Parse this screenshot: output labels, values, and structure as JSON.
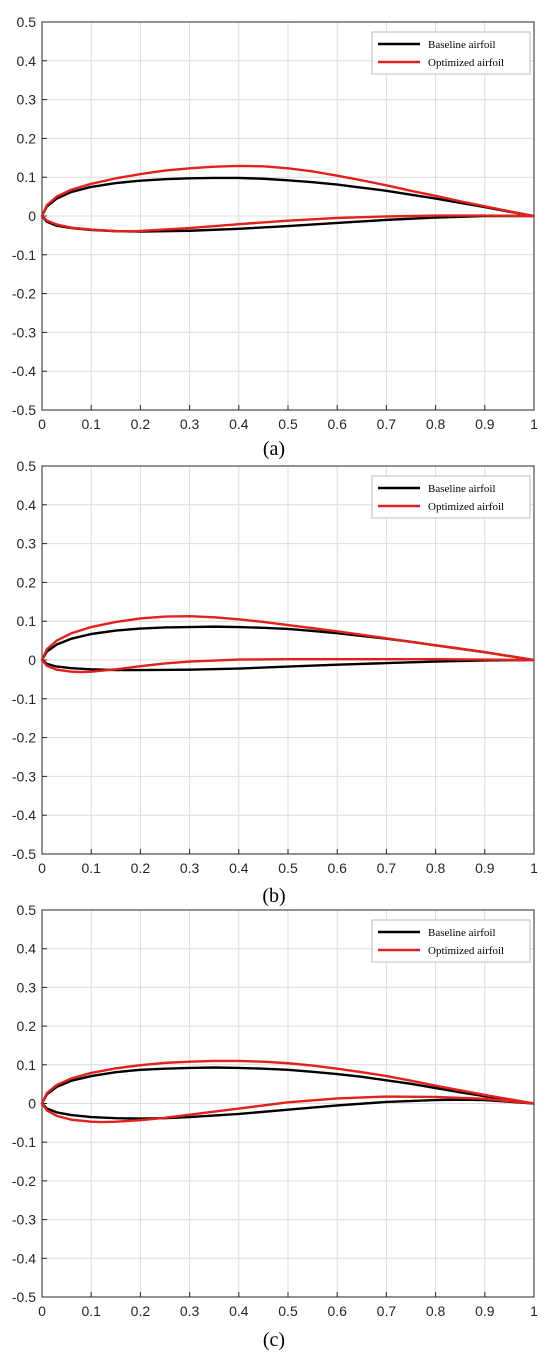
{
  "colors": {
    "baseline": "#000000",
    "optimized": "#e3201b",
    "grid": "#dcdcdc",
    "axis": "#262626"
  },
  "chart_data": [
    {
      "type": "line",
      "caption": "(a)",
      "xlim": [
        0,
        1
      ],
      "ylim": [
        -0.5,
        0.5
      ],
      "xticks": [
        "0",
        "0.1",
        "0.2",
        "0.3",
        "0.4",
        "0.5",
        "0.6",
        "0.7",
        "0.8",
        "0.9",
        "1"
      ],
      "yticks": [
        "0.5",
        "0.4",
        "0.3",
        "0.2",
        "0.1",
        "0",
        "-0.1",
        "-0.2",
        "-0.3",
        "-0.4",
        "-0.5"
      ],
      "grid": true,
      "legend_position": "top-right",
      "series": [
        {
          "name": "Baseline airfoil",
          "color": "#000000",
          "upper": [
            [
              0,
              0
            ],
            [
              0.01,
              0.025
            ],
            [
              0.03,
              0.045
            ],
            [
              0.06,
              0.062
            ],
            [
              0.1,
              0.075
            ],
            [
              0.15,
              0.085
            ],
            [
              0.2,
              0.091
            ],
            [
              0.25,
              0.095
            ],
            [
              0.3,
              0.097
            ],
            [
              0.35,
              0.098
            ],
            [
              0.4,
              0.098
            ],
            [
              0.45,
              0.096
            ],
            [
              0.5,
              0.092
            ],
            [
              0.55,
              0.087
            ],
            [
              0.6,
              0.081
            ],
            [
              0.65,
              0.073
            ],
            [
              0.7,
              0.065
            ],
            [
              0.75,
              0.055
            ],
            [
              0.8,
              0.045
            ],
            [
              0.85,
              0.034
            ],
            [
              0.9,
              0.023
            ],
            [
              0.95,
              0.011
            ],
            [
              1,
              0
            ]
          ],
          "lower": [
            [
              0,
              0
            ],
            [
              0.01,
              -0.015
            ],
            [
              0.03,
              -0.025
            ],
            [
              0.06,
              -0.031
            ],
            [
              0.1,
              -0.036
            ],
            [
              0.15,
              -0.039
            ],
            [
              0.2,
              -0.04
            ],
            [
              0.25,
              -0.039
            ],
            [
              0.3,
              -0.038
            ],
            [
              0.4,
              -0.033
            ],
            [
              0.5,
              -0.026
            ],
            [
              0.6,
              -0.018
            ],
            [
              0.7,
              -0.01
            ],
            [
              0.8,
              -0.004
            ],
            [
              0.9,
              0
            ],
            [
              1,
              0
            ]
          ]
        },
        {
          "name": "Optimized airfoil",
          "color": "#e3201b",
          "upper": [
            [
              0,
              0
            ],
            [
              0.01,
              0.028
            ],
            [
              0.03,
              0.05
            ],
            [
              0.06,
              0.068
            ],
            [
              0.1,
              0.083
            ],
            [
              0.15,
              0.097
            ],
            [
              0.2,
              0.108
            ],
            [
              0.25,
              0.117
            ],
            [
              0.3,
              0.123
            ],
            [
              0.35,
              0.127
            ],
            [
              0.4,
              0.129
            ],
            [
              0.45,
              0.128
            ],
            [
              0.5,
              0.123
            ],
            [
              0.55,
              0.115
            ],
            [
              0.6,
              0.104
            ],
            [
              0.65,
              0.092
            ],
            [
              0.7,
              0.079
            ],
            [
              0.75,
              0.065
            ],
            [
              0.8,
              0.052
            ],
            [
              0.85,
              0.038
            ],
            [
              0.9,
              0.025
            ],
            [
              0.95,
              0.012
            ],
            [
              1,
              0
            ]
          ],
          "lower": [
            [
              0,
              0
            ],
            [
              0.01,
              -0.012
            ],
            [
              0.03,
              -0.022
            ],
            [
              0.06,
              -0.03
            ],
            [
              0.1,
              -0.035
            ],
            [
              0.15,
              -0.039
            ],
            [
              0.18,
              -0.04
            ],
            [
              0.22,
              -0.037
            ],
            [
              0.3,
              -0.031
            ],
            [
              0.4,
              -0.021
            ],
            [
              0.5,
              -0.012
            ],
            [
              0.6,
              -0.005
            ],
            [
              0.7,
              -0.001
            ],
            [
              0.8,
              0.001
            ],
            [
              0.9,
              0.001
            ],
            [
              1,
              0
            ]
          ]
        }
      ]
    },
    {
      "type": "line",
      "caption": "(b)",
      "xlim": [
        0,
        1
      ],
      "ylim": [
        -0.5,
        0.5
      ],
      "xticks": [
        "0",
        "0.1",
        "0.2",
        "0.3",
        "0.4",
        "0.5",
        "0.6",
        "0.7",
        "0.8",
        "0.9",
        "1"
      ],
      "yticks": [
        "0.5",
        "0.4",
        "0.3",
        "0.2",
        "0.1",
        "0",
        "-0.1",
        "-0.2",
        "-0.3",
        "-0.4",
        "-0.5"
      ],
      "grid": true,
      "legend_position": "top-right",
      "series": [
        {
          "name": "Baseline airfoil",
          "color": "#000000",
          "upper": [
            [
              0,
              0
            ],
            [
              0.01,
              0.022
            ],
            [
              0.03,
              0.04
            ],
            [
              0.06,
              0.055
            ],
            [
              0.1,
              0.067
            ],
            [
              0.15,
              0.076
            ],
            [
              0.2,
              0.081
            ],
            [
              0.25,
              0.084
            ],
            [
              0.3,
              0.085
            ],
            [
              0.35,
              0.086
            ],
            [
              0.4,
              0.085
            ],
            [
              0.45,
              0.083
            ],
            [
              0.5,
              0.08
            ],
            [
              0.55,
              0.075
            ],
            [
              0.6,
              0.069
            ],
            [
              0.65,
              0.062
            ],
            [
              0.7,
              0.055
            ],
            [
              0.75,
              0.047
            ],
            [
              0.8,
              0.038
            ],
            [
              0.85,
              0.029
            ],
            [
              0.9,
              0.02
            ],
            [
              0.95,
              0.01
            ],
            [
              1,
              0
            ]
          ],
          "lower": [
            [
              0,
              0
            ],
            [
              0.01,
              -0.01
            ],
            [
              0.03,
              -0.017
            ],
            [
              0.06,
              -0.021
            ],
            [
              0.1,
              -0.024
            ],
            [
              0.15,
              -0.026
            ],
            [
              0.2,
              -0.026
            ],
            [
              0.3,
              -0.025
            ],
            [
              0.4,
              -0.022
            ],
            [
              0.5,
              -0.017
            ],
            [
              0.6,
              -0.012
            ],
            [
              0.7,
              -0.008
            ],
            [
              0.8,
              -0.004
            ],
            [
              0.9,
              -0.001
            ],
            [
              1,
              0
            ]
          ]
        },
        {
          "name": "Optimized airfoil",
          "color": "#e3201b",
          "upper": [
            [
              0,
              0
            ],
            [
              0.01,
              0.028
            ],
            [
              0.03,
              0.05
            ],
            [
              0.06,
              0.069
            ],
            [
              0.1,
              0.085
            ],
            [
              0.15,
              0.098
            ],
            [
              0.2,
              0.107
            ],
            [
              0.25,
              0.112
            ],
            [
              0.3,
              0.113
            ],
            [
              0.35,
              0.11
            ],
            [
              0.4,
              0.105
            ],
            [
              0.45,
              0.098
            ],
            [
              0.5,
              0.09
            ],
            [
              0.55,
              0.082
            ],
            [
              0.6,
              0.074
            ],
            [
              0.65,
              0.065
            ],
            [
              0.7,
              0.056
            ],
            [
              0.75,
              0.047
            ],
            [
              0.8,
              0.038
            ],
            [
              0.85,
              0.029
            ],
            [
              0.9,
              0.02
            ],
            [
              0.95,
              0.01
            ],
            [
              1,
              0
            ]
          ],
          "lower": [
            [
              0,
              0
            ],
            [
              0.01,
              -0.015
            ],
            [
              0.03,
              -0.025
            ],
            [
              0.06,
              -0.03
            ],
            [
              0.08,
              -0.031
            ],
            [
              0.1,
              -0.03
            ],
            [
              0.15,
              -0.024
            ],
            [
              0.2,
              -0.016
            ],
            [
              0.25,
              -0.009
            ],
            [
              0.3,
              -0.004
            ],
            [
              0.4,
              0.001
            ],
            [
              0.5,
              0.002
            ],
            [
              0.6,
              0.002
            ],
            [
              0.7,
              0.002
            ],
            [
              0.8,
              0.002
            ],
            [
              0.9,
              0.001
            ],
            [
              1,
              0
            ]
          ]
        }
      ]
    },
    {
      "type": "line",
      "caption": "(c)",
      "xlim": [
        0,
        1
      ],
      "ylim": [
        -0.5,
        0.5
      ],
      "xticks": [
        "0",
        "0.1",
        "0.2",
        "0.3",
        "0.4",
        "0.5",
        "0.6",
        "0.7",
        "0.8",
        "0.9",
        "1"
      ],
      "yticks": [
        "0.5",
        "0.4",
        "0.3",
        "0.2",
        "0.1",
        "0",
        "-0.1",
        "-0.2",
        "-0.3",
        "-0.4",
        "-0.5"
      ],
      "grid": true,
      "legend_position": "top-right",
      "series": [
        {
          "name": "Baseline airfoil",
          "color": "#000000",
          "upper": [
            [
              0,
              0
            ],
            [
              0.01,
              0.024
            ],
            [
              0.03,
              0.043
            ],
            [
              0.06,
              0.059
            ],
            [
              0.1,
              0.071
            ],
            [
              0.15,
              0.081
            ],
            [
              0.2,
              0.087
            ],
            [
              0.25,
              0.09
            ],
            [
              0.3,
              0.092
            ],
            [
              0.35,
              0.093
            ],
            [
              0.4,
              0.092
            ],
            [
              0.45,
              0.09
            ],
            [
              0.5,
              0.087
            ],
            [
              0.55,
              0.082
            ],
            [
              0.6,
              0.076
            ],
            [
              0.65,
              0.069
            ],
            [
              0.7,
              0.06
            ],
            [
              0.75,
              0.051
            ],
            [
              0.8,
              0.04
            ],
            [
              0.85,
              0.029
            ],
            [
              0.9,
              0.019
            ],
            [
              0.95,
              0.009
            ],
            [
              1,
              0
            ]
          ],
          "lower": [
            [
              0,
              0
            ],
            [
              0.01,
              -0.013
            ],
            [
              0.03,
              -0.023
            ],
            [
              0.06,
              -0.03
            ],
            [
              0.1,
              -0.035
            ],
            [
              0.15,
              -0.038
            ],
            [
              0.2,
              -0.039
            ],
            [
              0.25,
              -0.038
            ],
            [
              0.3,
              -0.035
            ],
            [
              0.4,
              -0.027
            ],
            [
              0.5,
              -0.016
            ],
            [
              0.6,
              -0.005
            ],
            [
              0.7,
              0.004
            ],
            [
              0.8,
              0.009
            ],
            [
              0.85,
              0.01
            ],
            [
              0.9,
              0.009
            ],
            [
              1,
              0
            ]
          ]
        },
        {
          "name": "Optimized airfoil",
          "color": "#e3201b",
          "upper": [
            [
              0,
              0
            ],
            [
              0.01,
              0.027
            ],
            [
              0.03,
              0.048
            ],
            [
              0.06,
              0.065
            ],
            [
              0.1,
              0.079
            ],
            [
              0.15,
              0.091
            ],
            [
              0.2,
              0.099
            ],
            [
              0.25,
              0.105
            ],
            [
              0.3,
              0.108
            ],
            [
              0.35,
              0.11
            ],
            [
              0.4,
              0.11
            ],
            [
              0.45,
              0.108
            ],
            [
              0.5,
              0.104
            ],
            [
              0.55,
              0.098
            ],
            [
              0.6,
              0.09
            ],
            [
              0.65,
              0.081
            ],
            [
              0.7,
              0.071
            ],
            [
              0.75,
              0.059
            ],
            [
              0.8,
              0.046
            ],
            [
              0.85,
              0.034
            ],
            [
              0.9,
              0.022
            ],
            [
              0.95,
              0.011
            ],
            [
              1,
              0
            ]
          ],
          "lower": [
            [
              0,
              0
            ],
            [
              0.01,
              -0.018
            ],
            [
              0.03,
              -0.032
            ],
            [
              0.06,
              -0.042
            ],
            [
              0.1,
              -0.047
            ],
            [
              0.12,
              -0.048
            ],
            [
              0.15,
              -0.047
            ],
            [
              0.2,
              -0.043
            ],
            [
              0.25,
              -0.037
            ],
            [
              0.3,
              -0.029
            ],
            [
              0.4,
              -0.013
            ],
            [
              0.5,
              0.003
            ],
            [
              0.6,
              0.013
            ],
            [
              0.7,
              0.018
            ],
            [
              0.8,
              0.017
            ],
            [
              0.9,
              0.012
            ],
            [
              1,
              0
            ]
          ]
        }
      ]
    }
  ]
}
